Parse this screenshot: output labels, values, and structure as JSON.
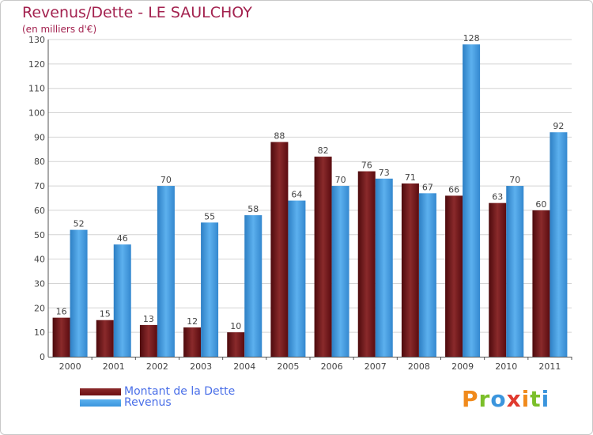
{
  "chart_data": {
    "type": "bar",
    "title": "Revenus/Dette - LE SAULCHOY",
    "subtitle": "(en milliers d'€)",
    "xlabel": "",
    "ylabel": "",
    "ylim": [
      0,
      130
    ],
    "ytick_step": 10,
    "grid": true,
    "categories": [
      "2000",
      "2001",
      "2002",
      "2003",
      "2004",
      "2005",
      "2006",
      "2007",
      "2008",
      "2009",
      "2010",
      "2011"
    ],
    "series": [
      {
        "name": "Montant de la Dette",
        "color": "#6d0f13",
        "values": [
          16,
          15,
          13,
          12,
          10,
          88,
          82,
          76,
          71,
          66,
          63,
          60
        ]
      },
      {
        "name": "Revenus",
        "color": "#3b95dd",
        "values": [
          52,
          46,
          70,
          55,
          58,
          64,
          70,
          73,
          67,
          128,
          70,
          92
        ]
      }
    ],
    "legend_position": "bottom-left"
  },
  "logo": {
    "text": "Proxiti",
    "colors": [
      "#f08a1c",
      "#7bbf2a",
      "#3b95dd",
      "#e03a2f",
      "#f08a1c",
      "#7bbf2a",
      "#3b95dd"
    ]
  }
}
